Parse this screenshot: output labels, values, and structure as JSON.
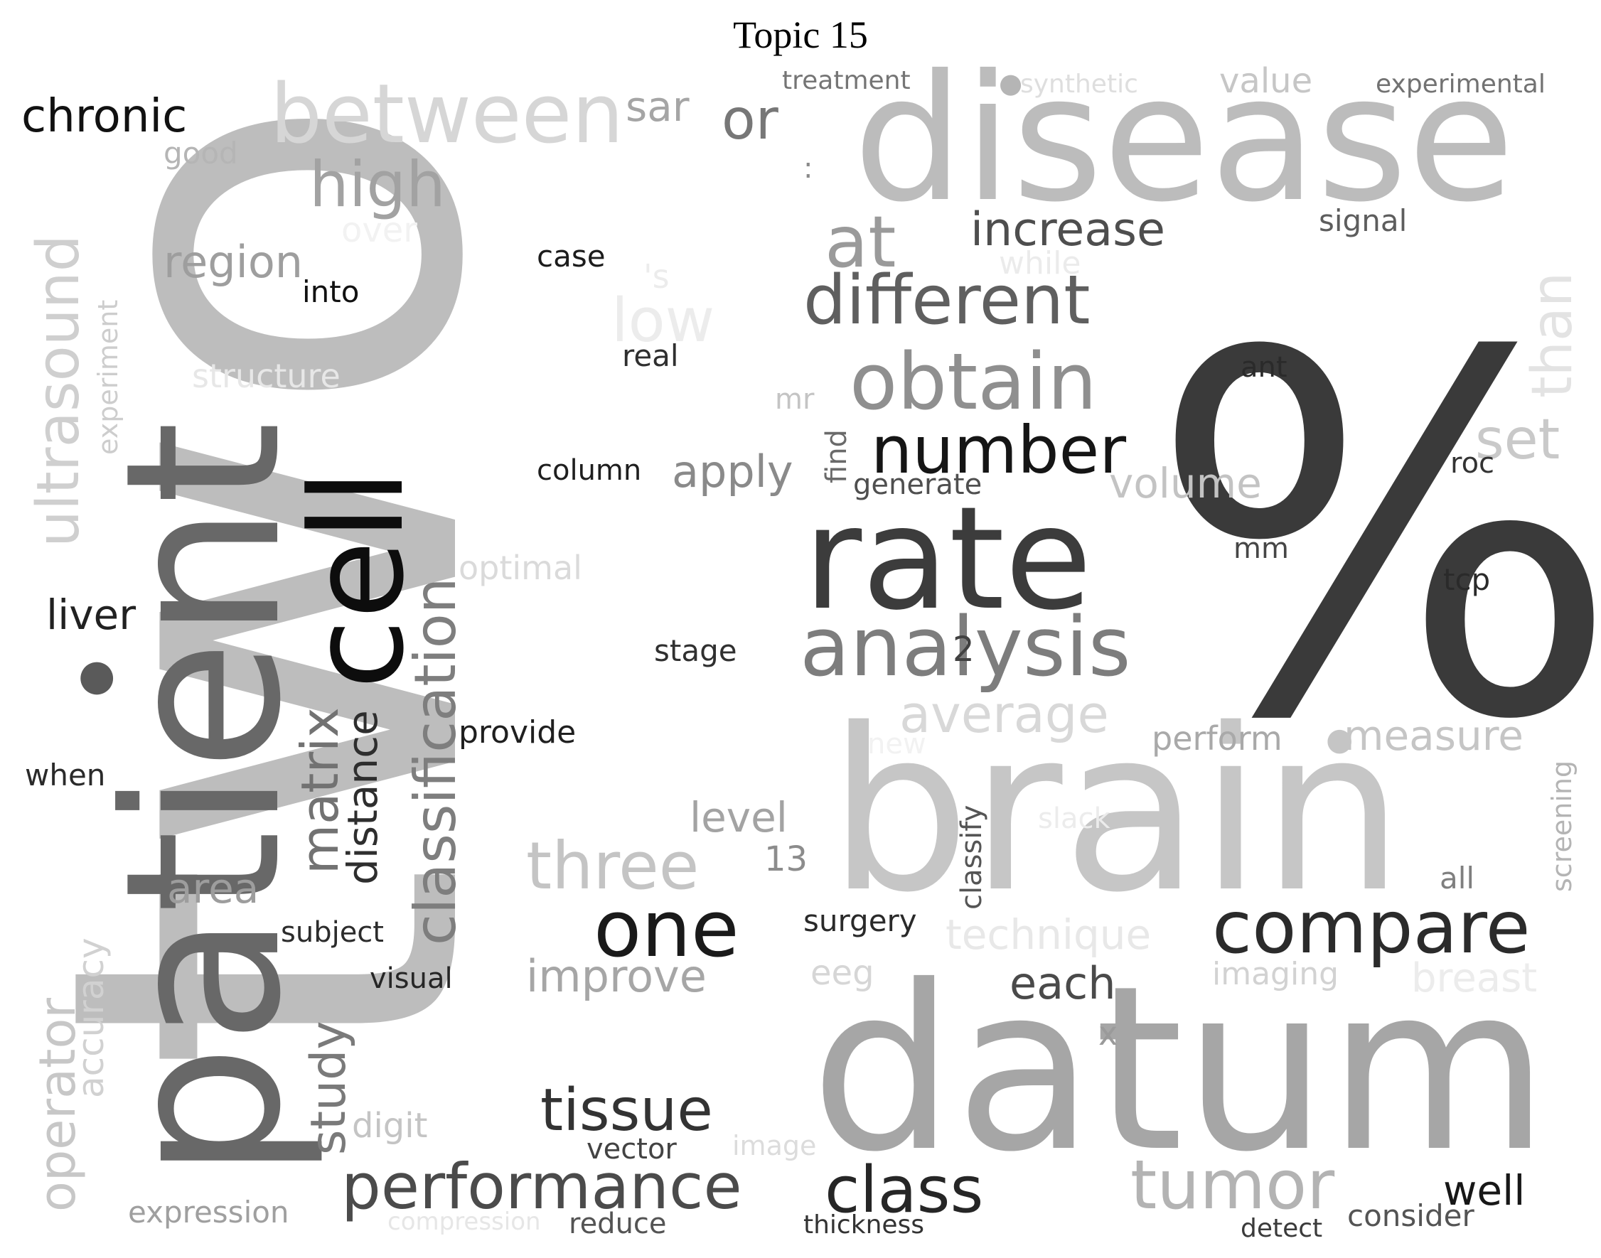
{
  "title": "Topic 15",
  "words": [
    {
      "text": "two",
      "color": "#bdbdbd"
    },
    {
      "text": "patient",
      "color": "#686868"
    },
    {
      "text": "%",
      "color": "#3a3a3a"
    },
    {
      "text": "disease",
      "color": "#bcbcbc"
    },
    {
      "text": "datum",
      "color": "#a6a6a6"
    },
    {
      "text": "brain",
      "color": "#c6c6c6"
    },
    {
      "text": "cell",
      "color": "#0d0d0d"
    },
    {
      "text": "rate",
      "color": "#3c3c3c"
    },
    {
      "text": "analysis",
      "color": "#7d7d7d"
    },
    {
      "text": "between",
      "color": "#d6d6d6"
    },
    {
      "text": "obtain",
      "color": "#8f8f8f"
    },
    {
      "text": "different",
      "color": "#5f5f5f"
    },
    {
      "text": "number",
      "color": "#151515"
    },
    {
      "text": "compare",
      "color": "#2b2b2b"
    },
    {
      "text": "one",
      "color": "#1a1a1a"
    },
    {
      "text": "classification",
      "color": "#7e7e7e"
    },
    {
      "text": "ultrasound",
      "color": "#cfcfcf"
    },
    {
      "text": "performance",
      "color": "#4b4b4b"
    },
    {
      "text": "class",
      "color": "#262626"
    },
    {
      "text": "tumor",
      "color": "#b3b3b3"
    },
    {
      "text": "tissue",
      "color": "#333333"
    },
    {
      "text": "three",
      "color": "#c4c4c4"
    },
    {
      "text": "high",
      "color": "#a2a2a2"
    },
    {
      "text": "at",
      "color": "#9a9a9a"
    },
    {
      "text": "average",
      "color": "#d8d8d8"
    },
    {
      "text": "matrix",
      "color": "#727272"
    },
    {
      "text": "operator",
      "color": "#c7c7c7"
    },
    {
      "text": "study",
      "color": "#7a7a7a"
    },
    {
      "text": "increase",
      "color": "#4e4e4e"
    },
    {
      "text": "improve",
      "color": "#a6a6a6"
    },
    {
      "text": "each",
      "color": "#4a4a4a"
    },
    {
      "text": "distance",
      "color": "#2e2e2e"
    },
    {
      "text": "set",
      "color": "#c9c9c9"
    },
    {
      "text": "low",
      "color": "#ececec"
    },
    {
      "text": "region",
      "color": "#9e9e9e"
    },
    {
      "text": "volume",
      "color": "#c3c3c3"
    },
    {
      "text": "chronic",
      "color": "#111111"
    },
    {
      "text": "apply",
      "color": "#8a8a8a"
    },
    {
      "text": "or",
      "color": "#777777"
    },
    {
      "text": "than",
      "color": "#e3e3e3"
    },
    {
      "text": "liver",
      "color": "#212121"
    },
    {
      "text": "level",
      "color": "#a3a3a3"
    },
    {
      "text": "area",
      "color": "#9d9d9d"
    },
    {
      "text": "measure",
      "color": "#c5c5c5"
    },
    {
      "text": "technique",
      "color": "#e8e8e8"
    },
    {
      "text": "well",
      "color": "#171717"
    },
    {
      "text": "breast",
      "color": "#ececec"
    },
    {
      "text": "accuracy",
      "color": "#d1d1d1"
    },
    {
      "text": "classify",
      "color": "#555555"
    },
    {
      "text": "perform",
      "color": "#a9a9a9"
    },
    {
      "text": "experiment",
      "color": "#cdcdcd"
    },
    {
      "text": "screening",
      "color": "#b4b4b4"
    },
    {
      "text": "value",
      "color": "#c6c6c6"
    },
    {
      "text": "sar",
      "color": "#a5a5a5"
    },
    {
      "text": "optimal",
      "color": "#dadada"
    },
    {
      "text": "structure",
      "color": "#e7e7e7"
    },
    {
      "text": "expression",
      "color": "#9f9f9f"
    },
    {
      "text": "consider",
      "color": "#545454"
    },
    {
      "text": "signal",
      "color": "#5d5d5d"
    },
    {
      "text": "digit",
      "color": "#c4c4c4"
    },
    {
      "text": "imaging",
      "color": "#d2d2d2"
    },
    {
      "text": "experimental",
      "color": "#727272"
    },
    {
      "text": "synthetic",
      "color": "#dedede"
    },
    {
      "text": "treatment",
      "color": "#757575"
    },
    {
      "text": "case",
      "color": "#1c1c1c"
    },
    {
      "text": "column",
      "color": "#1e1e1e"
    },
    {
      "text": "stage",
      "color": "#303030"
    },
    {
      "text": "provide",
      "color": "#1f1f1f"
    },
    {
      "text": "real",
      "color": "#2f2f2f"
    },
    {
      "text": "into",
      "color": "#111111"
    },
    {
      "text": "generate",
      "color": "#4f4f4f"
    },
    {
      "text": "find",
      "color": "#6a6a6a"
    },
    {
      "text": "surgery",
      "color": "#2a2a2a"
    },
    {
      "text": "subject",
      "color": "#2c2c2c"
    },
    {
      "text": "visual",
      "color": "#262626"
    },
    {
      "text": "vector",
      "color": "#434343"
    },
    {
      "text": "reduce",
      "color": "#545454"
    },
    {
      "text": "thickness",
      "color": "#333333"
    },
    {
      "text": "detect",
      "color": "#3b3b3b"
    },
    {
      "text": "when",
      "color": "#2a2a2a"
    },
    {
      "text": "good",
      "color": "#b5b5b5"
    },
    {
      "text": "mr",
      "color": "#c4c4c4"
    },
    {
      "text": "while",
      "color": "#ebebeb"
    },
    {
      "text": "over",
      "color": "#f2f2f2"
    },
    {
      "text": "'s",
      "color": "#ececec"
    },
    {
      "text": "eeg",
      "color": "#d6d6d6"
    },
    {
      "text": "image",
      "color": "#dcdcdc"
    },
    {
      "text": "compression",
      "color": "#e6e6e6"
    },
    {
      "text": "slack",
      "color": "#ececec"
    },
    {
      "text": "new",
      "color": "#f2f2f2"
    },
    {
      "text": "x",
      "color": "#9a9a9a"
    },
    {
      "text": "13",
      "color": "#8c8c8c"
    },
    {
      "text": "2",
      "color": "#414141"
    },
    {
      "text": "mm",
      "color": "#464646"
    },
    {
      "text": "ant",
      "color": "#2a2a2a"
    },
    {
      "text": "roc",
      "color": "#333333"
    },
    {
      "text": "tcp",
      "color": "#2a2a2a"
    },
    {
      "text": "all",
      "color": "#7f7f7f"
    },
    {
      "text": ":",
      "color": "#8a8a8a"
    },
    {
      "text": "●",
      "color": "#b5b5b5"
    },
    {
      "text": "●",
      "color": "#c5c5c5"
    },
    {
      "text": "●",
      "color": "#5a5a5a"
    }
  ]
}
